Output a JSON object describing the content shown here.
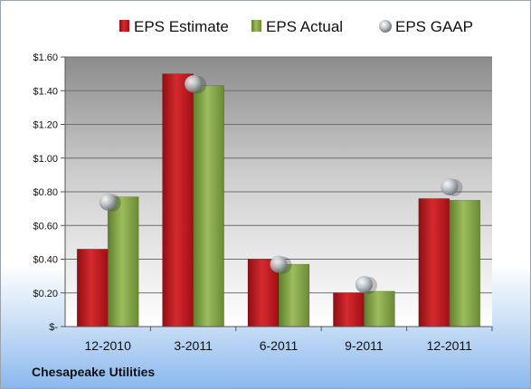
{
  "chart_data": {
    "type": "bar",
    "categories": [
      "12-2010",
      "3-2011",
      "6-2011",
      "9-2011",
      "12-2011"
    ],
    "series": [
      {
        "name": "EPS Estimate",
        "values": [
          0.46,
          1.5,
          0.4,
          0.2,
          0.76
        ],
        "color": "#c0151b"
      },
      {
        "name": "EPS Actual",
        "values": [
          0.77,
          1.43,
          0.37,
          0.21,
          0.75
        ],
        "color": "#86a84a"
      },
      {
        "name": "EPS GAAP",
        "type": "scatter",
        "values": [
          0.74,
          1.44,
          0.37,
          0.25,
          0.83
        ],
        "color": "#a9afb5"
      }
    ],
    "ylim": [
      0,
      1.6
    ],
    "yticks": [
      0,
      0.2,
      0.4,
      0.6,
      0.8,
      1.0,
      1.2,
      1.4,
      1.6
    ],
    "ytick_labels": [
      "$-",
      "$0.20",
      "$0.40",
      "$0.60",
      "$0.80",
      "$1.00",
      "$1.20",
      "$1.40",
      "$1.60"
    ],
    "grid": true,
    "legend": "top-center",
    "title": "",
    "xlabel": "",
    "ylabel": ""
  },
  "footer": {
    "company": "Chesapeake Utilities"
  }
}
